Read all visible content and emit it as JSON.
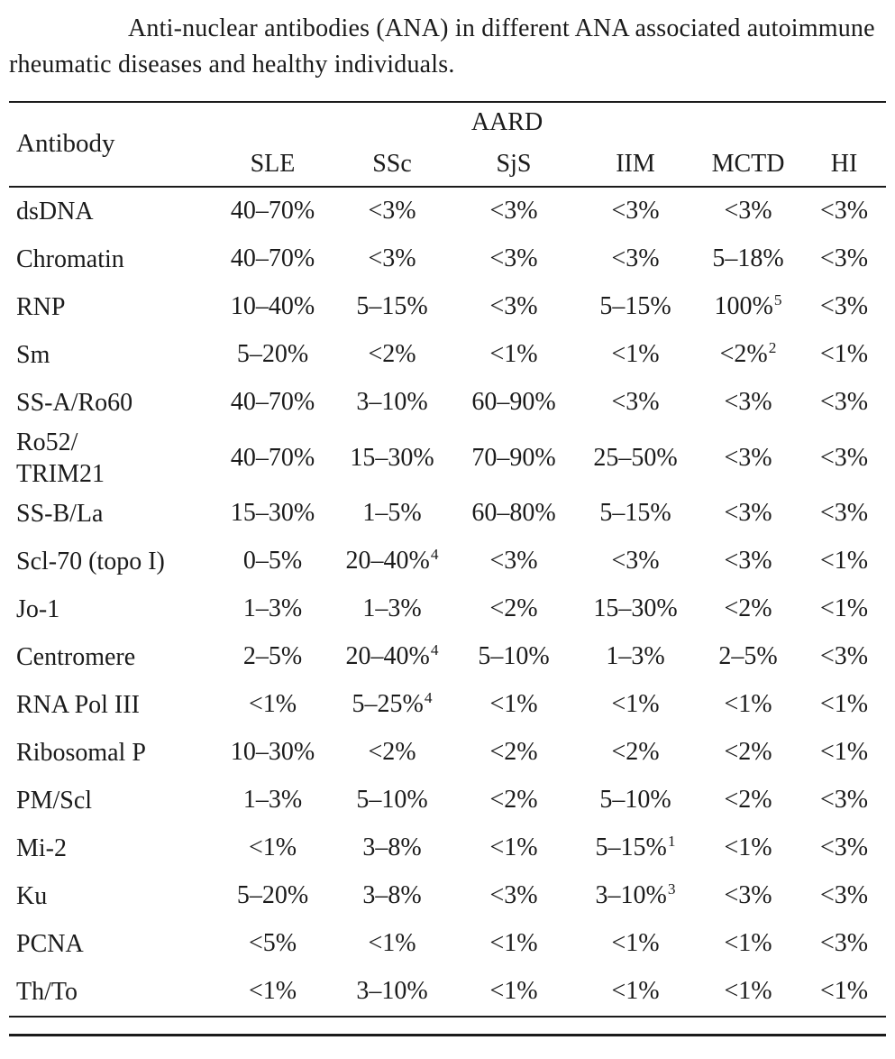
{
  "caption": "Anti-nuclear antibodies (ANA) in different ANA associated autoimmune rheumatic diseases and healthy individuals.",
  "table": {
    "corner_label": "Antibody",
    "group_label": "AARD",
    "columns": [
      "SLE",
      "SSc",
      "SjS",
      "IIM",
      "MCTD",
      "HI"
    ],
    "rows": [
      [
        "dsDNA",
        "40–70%",
        "<3%",
        "<3%",
        "<3%",
        "<3%",
        "<3%"
      ],
      [
        "Chromatin",
        "40–70%",
        "<3%",
        "<3%",
        "<3%",
        "5–18%",
        "<3%"
      ],
      [
        "RNP",
        "10–40%",
        "5–15%",
        "<3%",
        "5–15%",
        "100%^5",
        "<3%"
      ],
      [
        "Sm",
        "5–20%",
        "<2%",
        "<1%",
        "<1%",
        "<2%^2",
        "<1%"
      ],
      [
        "SS-A/Ro60",
        "40–70%",
        "3–10%",
        "60–90%",
        "<3%",
        "<3%",
        "<3%"
      ],
      [
        "Ro52/\nTRIM21",
        "40–70%",
        "15–30%",
        "70–90%",
        "25–50%",
        "<3%",
        "<3%"
      ],
      [
        "SS-B/La",
        "15–30%",
        "1–5%",
        "60–80%",
        "5–15%",
        "<3%",
        "<3%"
      ],
      [
        "Scl-70 (topo I)",
        "0–5%",
        "20–40%^4",
        "<3%",
        "<3%",
        "<3%",
        "<1%"
      ],
      [
        "Jo-1",
        "1–3%",
        "1–3%",
        "<2%",
        "15–30%",
        "<2%",
        "<1%"
      ],
      [
        "Centromere",
        "2–5%",
        "20–40%^4",
        "5–10%",
        "1–3%",
        "2–5%",
        "<3%"
      ],
      [
        "RNA Pol III",
        "<1%",
        "5–25%^4",
        "<1%",
        "<1%",
        "<1%",
        "<1%"
      ],
      [
        "Ribosomal P",
        "10–30%",
        "<2%",
        "<2%",
        "<2%",
        "<2%",
        "<1%"
      ],
      [
        "PM/Scl",
        "1–3%",
        "5–10%",
        "<2%",
        "5–10%",
        "<2%",
        "<3%"
      ],
      [
        "Mi-2",
        "<1%",
        "3–8%",
        "<1%",
        "5–15%^1",
        "<1%",
        "<3%"
      ],
      [
        "Ku",
        "5–20%",
        "3–8%",
        "<3%",
        "3–10%^3",
        "<3%",
        "<3%"
      ],
      [
        "PCNA",
        "<5%",
        "<1%",
        "<1%",
        "<1%",
        "<1%",
        "<3%"
      ],
      [
        "Th/To",
        "<1%",
        "3–10%",
        "<1%",
        "<1%",
        "<1%",
        "<1%"
      ]
    ]
  },
  "colors": {
    "text": "#1b1b1b",
    "rule": "#1b1b1b",
    "background": "#ffffff"
  }
}
